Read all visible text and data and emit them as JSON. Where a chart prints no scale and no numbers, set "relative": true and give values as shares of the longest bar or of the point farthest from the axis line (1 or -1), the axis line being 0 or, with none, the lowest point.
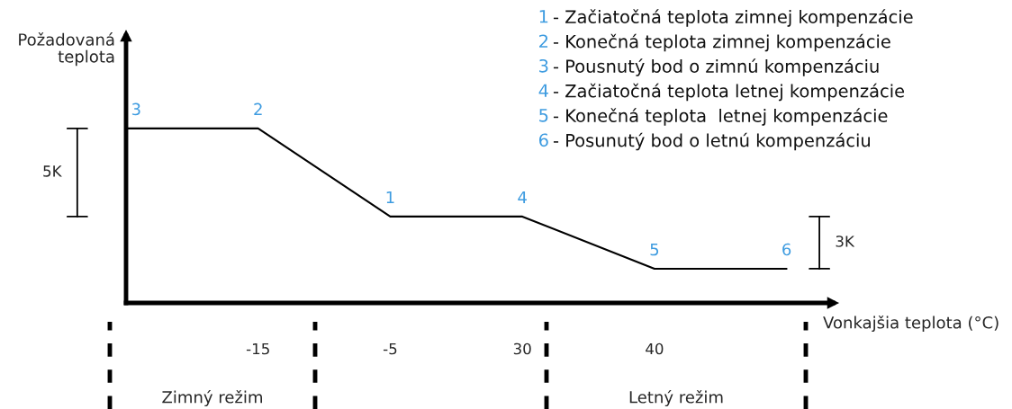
{
  "chart_data": {
    "type": "line",
    "relative": true,
    "xlabel": "Vonkajšia teplota (°C)",
    "ylabel": "Požadovaná\nteplota",
    "categories": [
      null,
      "-15",
      "-5",
      "30",
      "40",
      null
    ],
    "series": [
      {
        "color": "#000000",
        "values": [
          1,
          1,
          0.495,
          0.495,
          0.196,
          0.196
        ]
      }
    ],
    "annotations": [
      {
        "text": "3",
        "y": 1
      },
      {
        "text": "2",
        "x": "-15",
        "y": 1
      },
      {
        "text": "1",
        "x": "-5",
        "y": 0.495
      },
      {
        "text": "4",
        "x": "30",
        "y": 0.495
      },
      {
        "text": "5",
        "x": "40",
        "y": 0.196
      },
      {
        "text": "6",
        "y": 0.196
      },
      "1 - Začiatočná teplota zimnej kompenzácie",
      "2 - Konečná teplota zimnej kompenzácie",
      "3 - Pousnutý bod o zimnú kompenzáciu",
      "4 - Začiatočná teplota letnej kompenzácie",
      "5 - Konečná teplota  letnej kompenzácie",
      "6 - Posunutý bod o letnú kompenzáciu",
      "5K",
      "3K",
      "Zimný režim",
      "Letný režim"
    ],
    "grid": false,
    "legend": false,
    "marker": "none",
    "line_style": "solid"
  }
}
